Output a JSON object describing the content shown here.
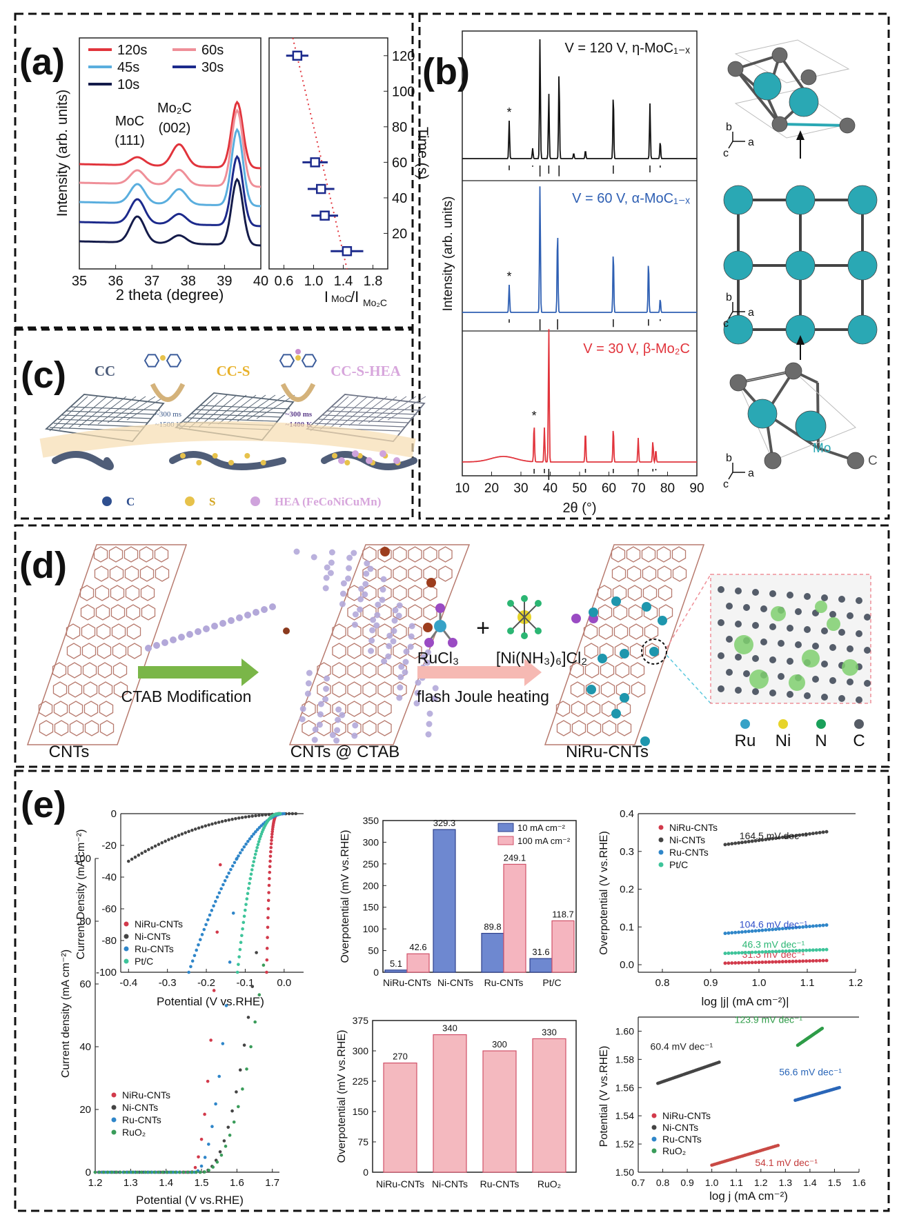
{
  "panels": {
    "a": "(a)",
    "b": "(b)",
    "c": "(c)",
    "d": "(d)",
    "e": "(e)"
  },
  "colors": {
    "teal": "#2aa8b4",
    "red": "#e1343c",
    "pink": "#ef8f98",
    "lightblue": "#5aaede",
    "navy": "#1c2a8c",
    "darknavy": "#141b4a",
    "green": "#2bb673",
    "brown": "#b77a6e"
  },
  "panel_a": {
    "xrd": {
      "xlabel": "2 theta (degree)",
      "ylabel": "Intensity (arb. units)",
      "xticks": [
        "35",
        "36",
        "37",
        "38",
        "39",
        "40"
      ],
      "legend": [
        "120s",
        "60s",
        "45s",
        "30s",
        "10s"
      ],
      "peak1": [
        "MoC",
        "(111)"
      ],
      "peak2": [
        "Mo₂C",
        "(002)"
      ]
    },
    "ratio": {
      "xlabel": "I_MoC/I_Mo2C",
      "ylabel": "Time (s)",
      "xticks": [
        "0.6",
        "1.0",
        "1.4",
        "1.8"
      ],
      "yticks": [
        "20",
        "40",
        "60",
        "80",
        "100",
        "120"
      ]
    }
  },
  "panel_b": {
    "labels": [
      "V = 120 V, η-MoC₁₋ₓ",
      "V = 60 V, α-MoC₁₋ₓ",
      "V = 30 V, β-Mo₂C"
    ],
    "xlabel": "2θ (°)",
    "ylabel": "Intensity (arb. units)",
    "xticks": [
      "10",
      "20",
      "30",
      "40",
      "50",
      "60",
      "70",
      "80",
      "90"
    ],
    "axes": {
      "a": "a",
      "b": "b",
      "c": "c"
    },
    "atoms": {
      "mo": "Mo",
      "c": "C"
    }
  },
  "panel_c": {
    "stages": [
      "CC",
      "CC-S",
      "CC-S-HEA"
    ],
    "cond1": [
      "~300 ms",
      "~1500 K"
    ],
    "cond2": [
      "~300 ms",
      "~1400 K"
    ],
    "legend": [
      "C",
      "S",
      "HEA (FeCoNiCuMn)"
    ]
  },
  "panel_d": {
    "stages": [
      "CNTs",
      "CNTs @ CTAB",
      "NiRu-CNTs"
    ],
    "step1": "CTAB Modification",
    "step2": "flash Joule heating",
    "reagent1": "RuCl₃",
    "reagent2": "[Ni(NH₃)₆]Cl₂",
    "legend": [
      "Ru",
      "Ni",
      "N",
      "C"
    ]
  },
  "chart_data": [
    {
      "type": "scatter",
      "id": "e1",
      "xlabel": "Potential (V vs.RHE)",
      "ylabel": "Current Density (mA cm⁻²)",
      "xlim": [
        -0.42,
        0.05
      ],
      "ylim": [
        -100,
        0
      ],
      "xticks": [
        "-0.4",
        "-0.3",
        "-0.2",
        "-0.1",
        "0.0"
      ],
      "yticks": [
        "-100",
        "-80",
        "-60",
        "-40",
        "-20",
        "0"
      ],
      "series": [
        {
          "name": "NiRu-CNTs",
          "onset": -0.01,
          "v100": -0.045,
          "curv": 4
        },
        {
          "name": "Ni-CNTs",
          "onset": 0.03,
          "v100": -0.4,
          "vend": -0.4,
          "jend": -30,
          "curv": 2.2
        },
        {
          "name": "Ru-CNTs",
          "onset": 0.0,
          "v100": -0.245,
          "curv": 1.8
        },
        {
          "name": "Pt/C",
          "onset": -0.01,
          "v100": -0.12,
          "curv": 2.5
        }
      ]
    },
    {
      "type": "bar",
      "id": "e2",
      "categories": [
        "NiRu-CNTs",
        "Ni-CNTs",
        "Ru-CNTs",
        "Pt/C"
      ],
      "ylabel": "Overpotential (mV vs.RHE)",
      "ylim": [
        0,
        350
      ],
      "yticks": [
        "0",
        "50",
        "100",
        "150",
        "200",
        "250",
        "300",
        "350"
      ],
      "series": [
        {
          "name": "10 mA cm⁻²",
          "values": [
            5.1,
            329.3,
            89.8,
            31.6
          ]
        },
        {
          "name": "100 mA cm⁻²",
          "values": [
            42.6,
            null,
            249.1,
            118.7
          ]
        }
      ]
    },
    {
      "type": "scatter",
      "id": "e3",
      "xlabel": "log |j| (mA cm⁻²)|",
      "ylabel": "Overpotential (V vs.RHE)",
      "xlim": [
        0.75,
        1.2
      ],
      "ylim": [
        -0.02,
        0.4
      ],
      "xticks": [
        "0.8",
        "0.9",
        "1.0",
        "1.1",
        "1.2"
      ],
      "yticks": [
        "0.0",
        "0.1",
        "0.2",
        "0.3",
        "0.4"
      ],
      "series": [
        {
          "name": "NiRu-CNTs",
          "x": [
            0.93,
            1.14
          ],
          "y": [
            0.004,
            0.011
          ],
          "annotation": "31.3 mV dec⁻¹"
        },
        {
          "name": "Ni-CNTs",
          "x": [
            0.93,
            1.14
          ],
          "y": [
            0.318,
            0.352
          ],
          "annotation": "164.5 mV dec⁻¹"
        },
        {
          "name": "Ru-CNTs",
          "x": [
            0.93,
            1.14
          ],
          "y": [
            0.083,
            0.105
          ],
          "annotation": "104.6 mV dec⁻¹"
        },
        {
          "name": "Pt/C",
          "x": [
            0.93,
            1.14
          ],
          "y": [
            0.03,
            0.04
          ],
          "annotation": "46.3 mV dec⁻¹"
        }
      ]
    },
    {
      "type": "scatter",
      "id": "e4",
      "xlabel": "Potential (V vs.RHE)",
      "ylabel": "Current density (mA cm⁻²)",
      "xlim": [
        1.2,
        1.72
      ],
      "ylim": [
        0,
        100
      ],
      "xticks": [
        "1.2",
        "1.3",
        "1.4",
        "1.5",
        "1.6",
        "1.7"
      ],
      "yticks": [
        "0",
        "20",
        "40",
        "60",
        "80",
        "100"
      ],
      "series": [
        {
          "name": "NiRu-CNTs",
          "onset": 1.47,
          "vend": 1.553,
          "jend": 98
        },
        {
          "name": "Ni-CNTs",
          "onset": 1.5,
          "vend": 1.655,
          "jend": 70
        },
        {
          "name": "Ru-CNTs",
          "onset": 1.48,
          "vend": 1.6,
          "jend": 100
        },
        {
          "name": "RuO₂",
          "onset": 1.5,
          "vend": 1.675,
          "jend": 66
        }
      ]
    },
    {
      "type": "bar",
      "id": "e5",
      "categories": [
        "NiRu-CNTs",
        "Ni-CNTs",
        "Ru-CNTs",
        "RuO₂"
      ],
      "ylabel": "Overpotential (mV vs.RHE)",
      "ylim": [
        0,
        375
      ],
      "yticks": [
        "0",
        "75",
        "150",
        "225",
        "300",
        "375"
      ],
      "series": [
        {
          "name": "",
          "values": [
            270,
            340,
            300,
            330
          ]
        }
      ]
    },
    {
      "type": "scatter",
      "id": "e6",
      "xlabel": "log j (mA cm⁻²)",
      "ylabel": "Potential (V vs.RHE)",
      "xlim": [
        0.7,
        1.6
      ],
      "ylim": [
        1.5,
        1.61
      ],
      "xticks": [
        "0.7",
        "0.8",
        "0.9",
        "1.0",
        "1.1",
        "1.2",
        "1.3",
        "1.4",
        "1.5",
        "1.6"
      ],
      "yticks": [
        "1.50",
        "1.52",
        "1.54",
        "1.56",
        "1.58",
        "1.60"
      ],
      "series": [
        {
          "name": "NiRu-CNTs",
          "x": [
            1.0,
            1.27
          ],
          "y": [
            1.505,
            1.519
          ],
          "annotation": "54.1 mV dec⁻¹"
        },
        {
          "name": "Ni-CNTs",
          "x": [
            0.78,
            1.03
          ],
          "y": [
            1.563,
            1.578
          ],
          "annotation": "60.4 mV dec⁻¹"
        },
        {
          "name": "Ru-CNTs",
          "x": [
            1.34,
            1.52
          ],
          "y": [
            1.551,
            1.56
          ],
          "annotation": "56.6 mV dec⁻¹"
        },
        {
          "name": "RuO₂",
          "x": [
            1.35,
            1.45
          ],
          "y": [
            1.59,
            1.602
          ],
          "annotation": "123.9 mV dec⁻¹"
        }
      ]
    }
  ]
}
